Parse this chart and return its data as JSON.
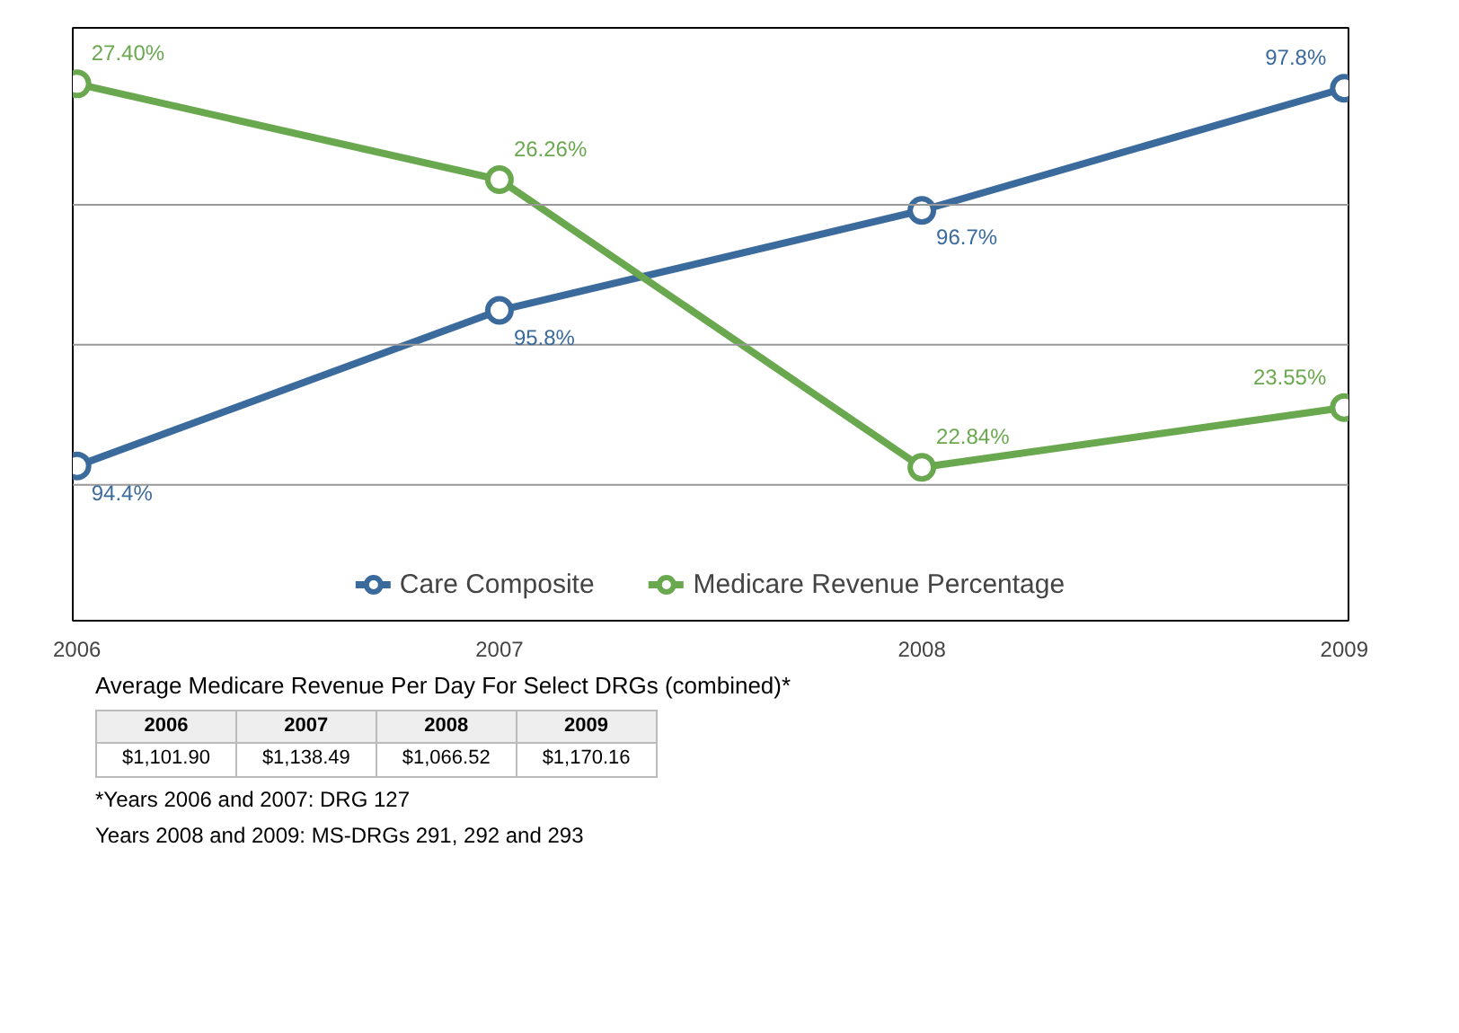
{
  "chart_data": {
    "type": "line",
    "categories": [
      "2006",
      "2007",
      "2008",
      "2009"
    ],
    "series": [
      {
        "name": "Care Composite",
        "color": "#3b6a9c",
        "values": [
          94.4,
          95.8,
          96.7,
          97.8
        ],
        "value_labels": [
          "94.4%",
          "95.8%",
          "96.7%",
          "97.8%"
        ]
      },
      {
        "name": "Medicare Revenue Percentage",
        "color": "#6aa84f",
        "values": [
          27.4,
          26.26,
          22.84,
          23.55
        ],
        "axis": "y2",
        "value_labels": [
          "27.40%",
          "26.26%",
          "22.84%",
          "23.55%"
        ]
      }
    ],
    "ref_lines": [
      {
        "axis": "y",
        "value": 94.23,
        "color": "#999999"
      },
      {
        "axis": "y",
        "value": 95.49,
        "color": "#999999"
      },
      {
        "axis": "y",
        "value": 96.75,
        "color": "#999999"
      }
    ],
    "data_labels": true,
    "tick_labels": "x",
    "legend": "bottom",
    "marker": "circle",
    "line_style": "solid",
    "annotations": [
      "Average Medicare Revenue Per Day For Select DRGs (combined)*",
      "2006",
      "2007",
      "2008",
      "2009",
      "$1,101.90",
      "$1,138.49",
      "$1,066.52",
      "$1,170.16",
      "*Years 2006 and 2007: DRG 127",
      "Years 2008 and 2009: MS-DRGs 291, 292 and 293"
    ]
  }
}
